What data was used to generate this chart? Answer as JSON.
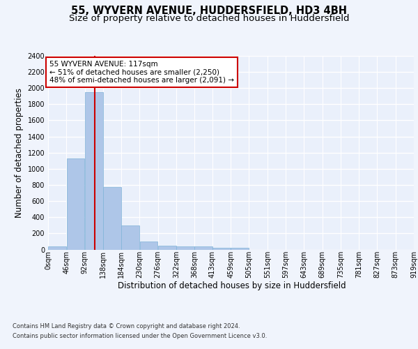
{
  "title": "55, WYVERN AVENUE, HUDDERSFIELD, HD3 4BH",
  "subtitle": "Size of property relative to detached houses in Huddersfield",
  "xlabel": "Distribution of detached houses by size in Huddersfield",
  "ylabel": "Number of detached properties",
  "bin_edges": [
    0,
    46,
    92,
    138,
    184,
    230,
    276,
    322,
    368,
    413,
    459,
    505,
    551,
    597,
    643,
    689,
    735,
    781,
    827,
    873,
    919
  ],
  "bar_heights": [
    35,
    1130,
    1950,
    770,
    300,
    100,
    50,
    40,
    35,
    22,
    18,
    0,
    0,
    0,
    0,
    0,
    0,
    0,
    0,
    0
  ],
  "bar_color": "#aec6e8",
  "bar_edgecolor": "#7fb3d8",
  "vline_x": 117,
  "vline_color": "#cc0000",
  "annotation_text": "55 WYVERN AVENUE: 117sqm\n← 51% of detached houses are smaller (2,250)\n48% of semi-detached houses are larger (2,091) →",
  "annotation_box_color": "#cc0000",
  "ylim": [
    0,
    2400
  ],
  "yticks": [
    0,
    200,
    400,
    600,
    800,
    1000,
    1200,
    1400,
    1600,
    1800,
    2000,
    2200,
    2400
  ],
  "tick_labels": [
    "0sqm",
    "46sqm",
    "92sqm",
    "138sqm",
    "184sqm",
    "230sqm",
    "276sqm",
    "322sqm",
    "368sqm",
    "413sqm",
    "459sqm",
    "505sqm",
    "551sqm",
    "597sqm",
    "643sqm",
    "689sqm",
    "735sqm",
    "781sqm",
    "827sqm",
    "873sqm",
    "919sqm"
  ],
  "footer_line1": "Contains HM Land Registry data © Crown copyright and database right 2024.",
  "footer_line2": "Contains public sector information licensed under the Open Government Licence v3.0.",
  "fig_bg_color": "#f0f4fc",
  "plot_bg_color": "#eaf0fb",
  "grid_color": "#ffffff",
  "title_fontsize": 10.5,
  "subtitle_fontsize": 9.5,
  "axis_label_fontsize": 8.5,
  "tick_fontsize": 7,
  "footer_fontsize": 6,
  "annotation_fontsize": 7.5
}
